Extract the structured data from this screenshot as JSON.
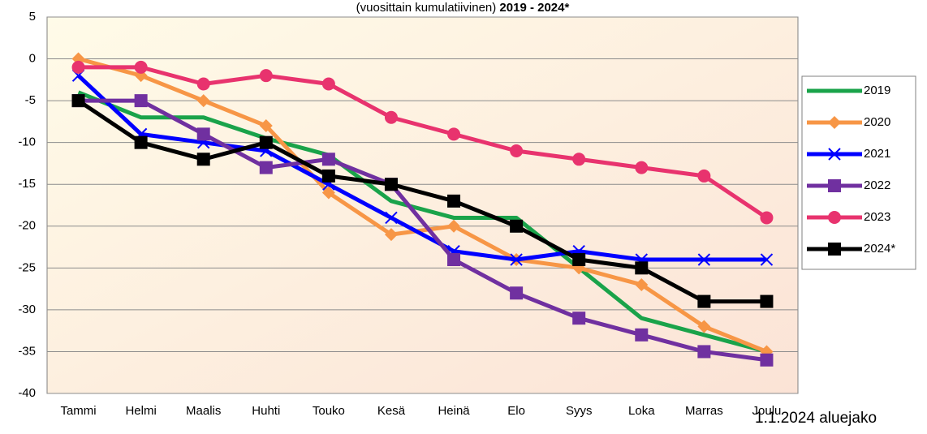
{
  "chart_data": {
    "type": "line",
    "title": "(vuosittain kumulatiivinen)",
    "title_bold": "2019 - 2024*",
    "footnote": "1.1.2024 aluejako",
    "categories": [
      "Tammi",
      "Helmi",
      "Maalis",
      "Huhti",
      "Touko",
      "Kesä",
      "Heinä",
      "Elo",
      "Syys",
      "Loka",
      "Marras",
      "Joulu"
    ],
    "ylim": [
      -40,
      5
    ],
    "yticks": [
      -40,
      -35,
      -30,
      -25,
      -20,
      -15,
      -10,
      -5,
      0,
      5
    ],
    "grid": true,
    "legend": "right",
    "series": [
      {
        "name": "2019",
        "color": "#1aa34a",
        "marker": "none",
        "values": [
          -4,
          -7,
          -7,
          -9.5,
          -11.5,
          -17,
          -19,
          -19,
          -25,
          -31,
          -33,
          -35
        ]
      },
      {
        "name": "2020",
        "color": "#f79646",
        "marker": "diamond",
        "values": [
          0,
          -2,
          -5,
          -8,
          -16,
          -21,
          -20,
          -24,
          -25,
          -27,
          -32,
          -35
        ]
      },
      {
        "name": "2021",
        "color": "#0000ff",
        "marker": "x",
        "values": [
          -2,
          -9,
          -10,
          -11,
          -15,
          -19,
          -23,
          -24,
          -23,
          -24,
          -24,
          -24
        ]
      },
      {
        "name": "2022",
        "color": "#7030a0",
        "marker": "square",
        "values": [
          -5,
          -5,
          -9,
          -13,
          -12,
          -15,
          -24,
          -28,
          -31,
          -33,
          -35,
          -36
        ]
      },
      {
        "name": "2023",
        "color": "#e8336e",
        "marker": "circle",
        "values": [
          -1,
          -1,
          -3,
          -2,
          -3,
          -7,
          -9,
          -11,
          -12,
          -13,
          -14,
          -19
        ]
      },
      {
        "name": "2024*",
        "color": "#000000",
        "marker": "square",
        "values": [
          -5,
          -10,
          -12,
          -10,
          -14,
          -15,
          -17,
          -20,
          -24,
          -25,
          -29,
          -29
        ]
      }
    ]
  }
}
